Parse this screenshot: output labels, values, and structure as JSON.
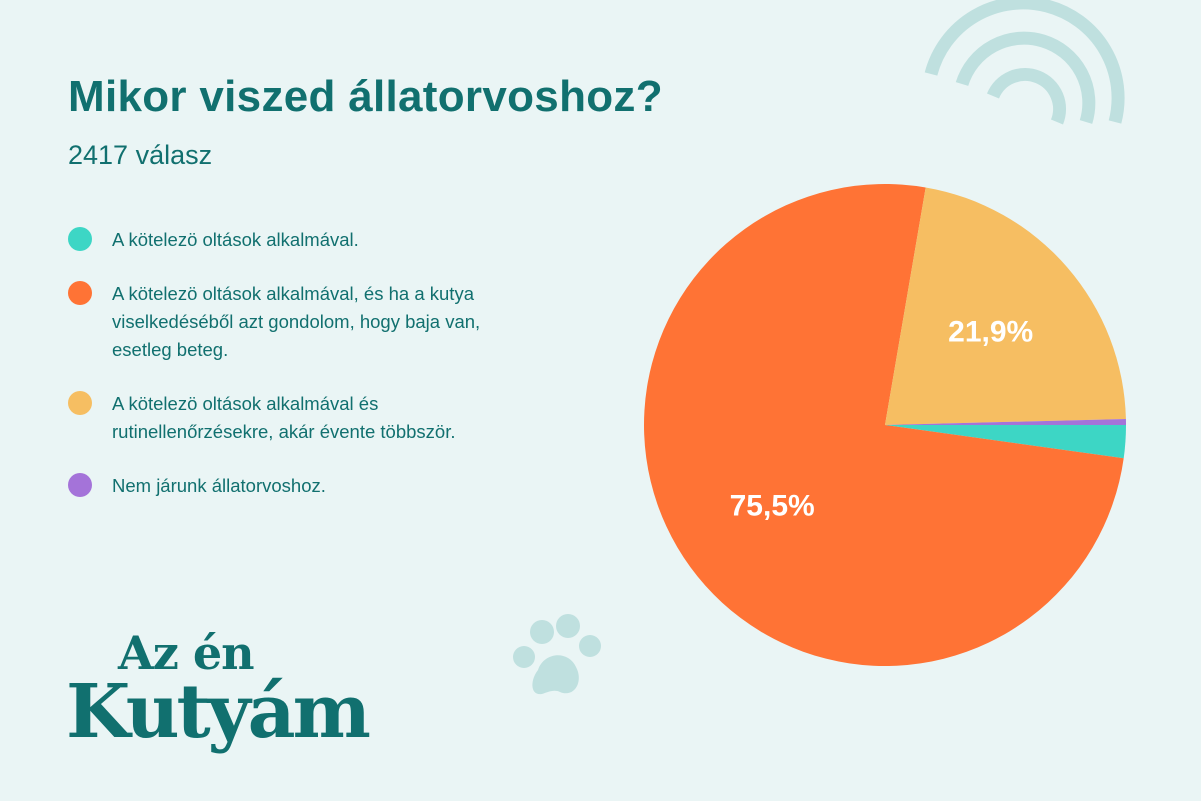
{
  "header": {
    "title": "Mikor viszed állatorvoshoz?",
    "subtitle": "2417 válasz"
  },
  "legend": [
    {
      "label": "A kötelezö oltások alkalmával.",
      "color": "#3dd6c5"
    },
    {
      "label": "A kötelezö oltások alkalmával, és ha a kutya viselkedéséből azt gondolom, hogy baja van, esetleg beteg.",
      "color": "#ff7335"
    },
    {
      "label": "A kötelezö oltások alkalmával és rutinellenőrzésekre, akár évente többször.",
      "color": "#f6be62"
    },
    {
      "label": "Nem járunk állatorvoshoz.",
      "color": "#a473d9"
    }
  ],
  "chart_data": {
    "type": "pie",
    "title": "Mikor viszed állatorvoshoz?",
    "subtitle": "2417 válasz",
    "categories": [
      "A kötelezö oltások alkalmával.",
      "A kötelezö oltások alkalmával, és ha a kutya viselkedéséből azt gondolom, hogy baja van, esetleg beteg.",
      "A kötelezö oltások alkalmával és rutinellenőrzésekre, akár évente többször.",
      "Nem járunk állatorvoshoz."
    ],
    "values": [
      2.2,
      75.5,
      21.9,
      0.4
    ],
    "colors": [
      "#3dd6c5",
      "#ff7335",
      "#f6be62",
      "#a473d9"
    ],
    "data_labels": [
      "",
      "75,5%",
      "21,9%",
      ""
    ],
    "legend_position": "left"
  },
  "logo": {
    "line1": "Az én",
    "line2": "Kutyám"
  },
  "colors": {
    "background": "#eaf5f5",
    "text": "#11706f",
    "decoration": "#bfe0df"
  }
}
